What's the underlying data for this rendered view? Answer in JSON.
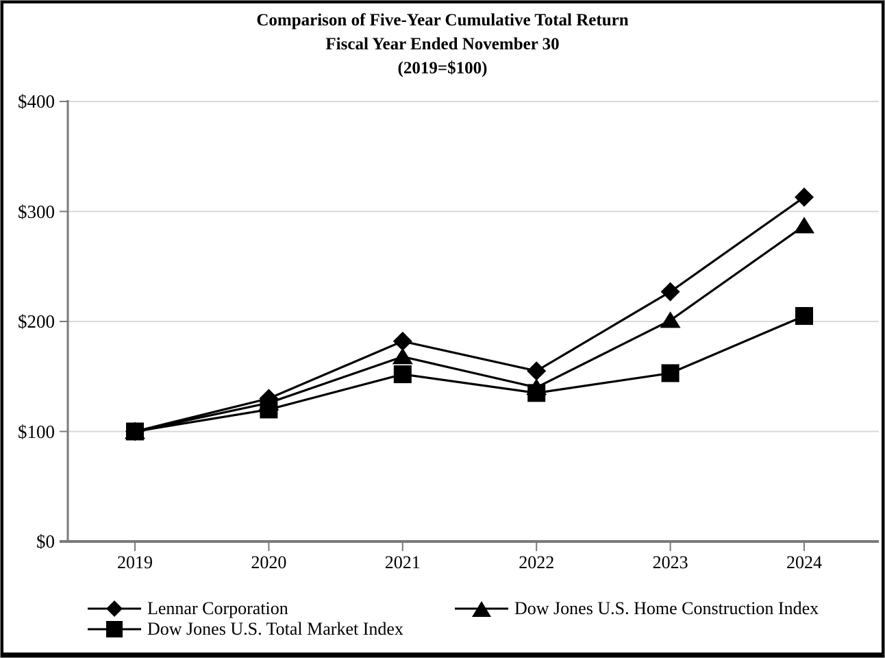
{
  "title": {
    "line1": "Comparison of Five-Year Cumulative Total Return",
    "line2": "Fiscal Year Ended November 30",
    "line3": "(2019=$100)"
  },
  "chart_data": {
    "type": "line",
    "title": "Comparison of Five-Year Cumulative Total Return",
    "subtitle": "Fiscal Year Ended November 30 (2019=$100)",
    "categories": [
      "2019",
      "2020",
      "2021",
      "2022",
      "2023",
      "2024"
    ],
    "series": [
      {
        "name": "Lennar Corporation",
        "marker": "diamond",
        "color": "#000000",
        "values": [
          100,
          130,
          182,
          155,
          227,
          313
        ]
      },
      {
        "name": "Dow Jones U.S. Home Construction Index",
        "marker": "triangle",
        "color": "#000000",
        "values": [
          100,
          126,
          168,
          140,
          201,
          287
        ]
      },
      {
        "name": "Dow Jones U.S. Total Market Index",
        "marker": "square",
        "color": "#000000",
        "values": [
          100,
          120,
          152,
          135,
          153,
          205
        ]
      }
    ],
    "xlabel": "",
    "ylabel": "",
    "ylim": [
      0,
      400
    ],
    "y_ticks": [
      {
        "value": 0,
        "label": "$0"
      },
      {
        "value": 100,
        "label": "$100"
      },
      {
        "value": 200,
        "label": "$200"
      },
      {
        "value": 300,
        "label": "$300"
      },
      {
        "value": 400,
        "label": "$400"
      }
    ],
    "grid": "horizontal",
    "legend_position": "bottom",
    "colors": {
      "series": "#000000",
      "axis": "#7a7a7a",
      "gridline": "#d9d9d9",
      "background": "#ffffff",
      "frame_border": "#000000",
      "text": "#000000"
    }
  },
  "legend": {
    "items": [
      {
        "label": "Lennar Corporation",
        "marker": "diamond"
      },
      {
        "label": "Dow Jones U.S. Home Construction Index",
        "marker": "triangle"
      },
      {
        "label": "Dow Jones U.S. Total Market Index",
        "marker": "square"
      }
    ]
  }
}
